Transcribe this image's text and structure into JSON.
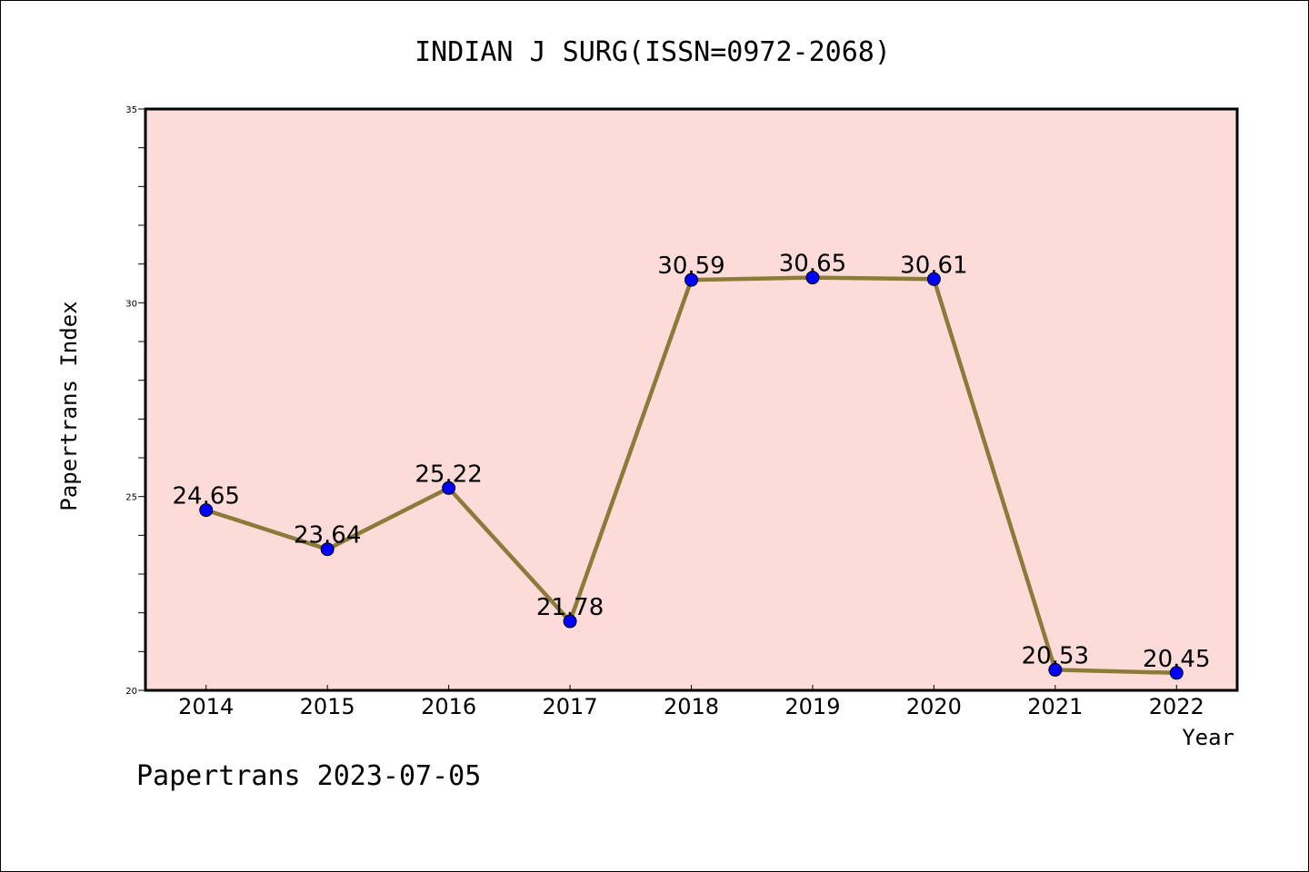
{
  "chart_data": {
    "type": "line",
    "title": "INDIAN J SURG(ISSN=0972-2068)",
    "xlabel": "Year",
    "ylabel": "Papertrans Index",
    "categories": [
      "2014",
      "2015",
      "2016",
      "2017",
      "2018",
      "2019",
      "2020",
      "2021",
      "2022"
    ],
    "values": [
      24.65,
      23.64,
      25.22,
      21.78,
      30.59,
      30.65,
      30.61,
      20.53,
      20.45
    ],
    "data_labels": [
      "24.65",
      "23.64",
      "25.22",
      "21.78",
      "30.59",
      "30.65",
      "30.61",
      "20.53",
      "20.45"
    ],
    "ylim": [
      20,
      35
    ],
    "yticks": [
      "20",
      "25",
      "30",
      "35"
    ],
    "grid": false,
    "colors": {
      "plot_background": "#fddbd9",
      "line": "#8b7a3a",
      "marker": "#0000ff"
    }
  },
  "footer": "Papertrans 2023-07-05"
}
